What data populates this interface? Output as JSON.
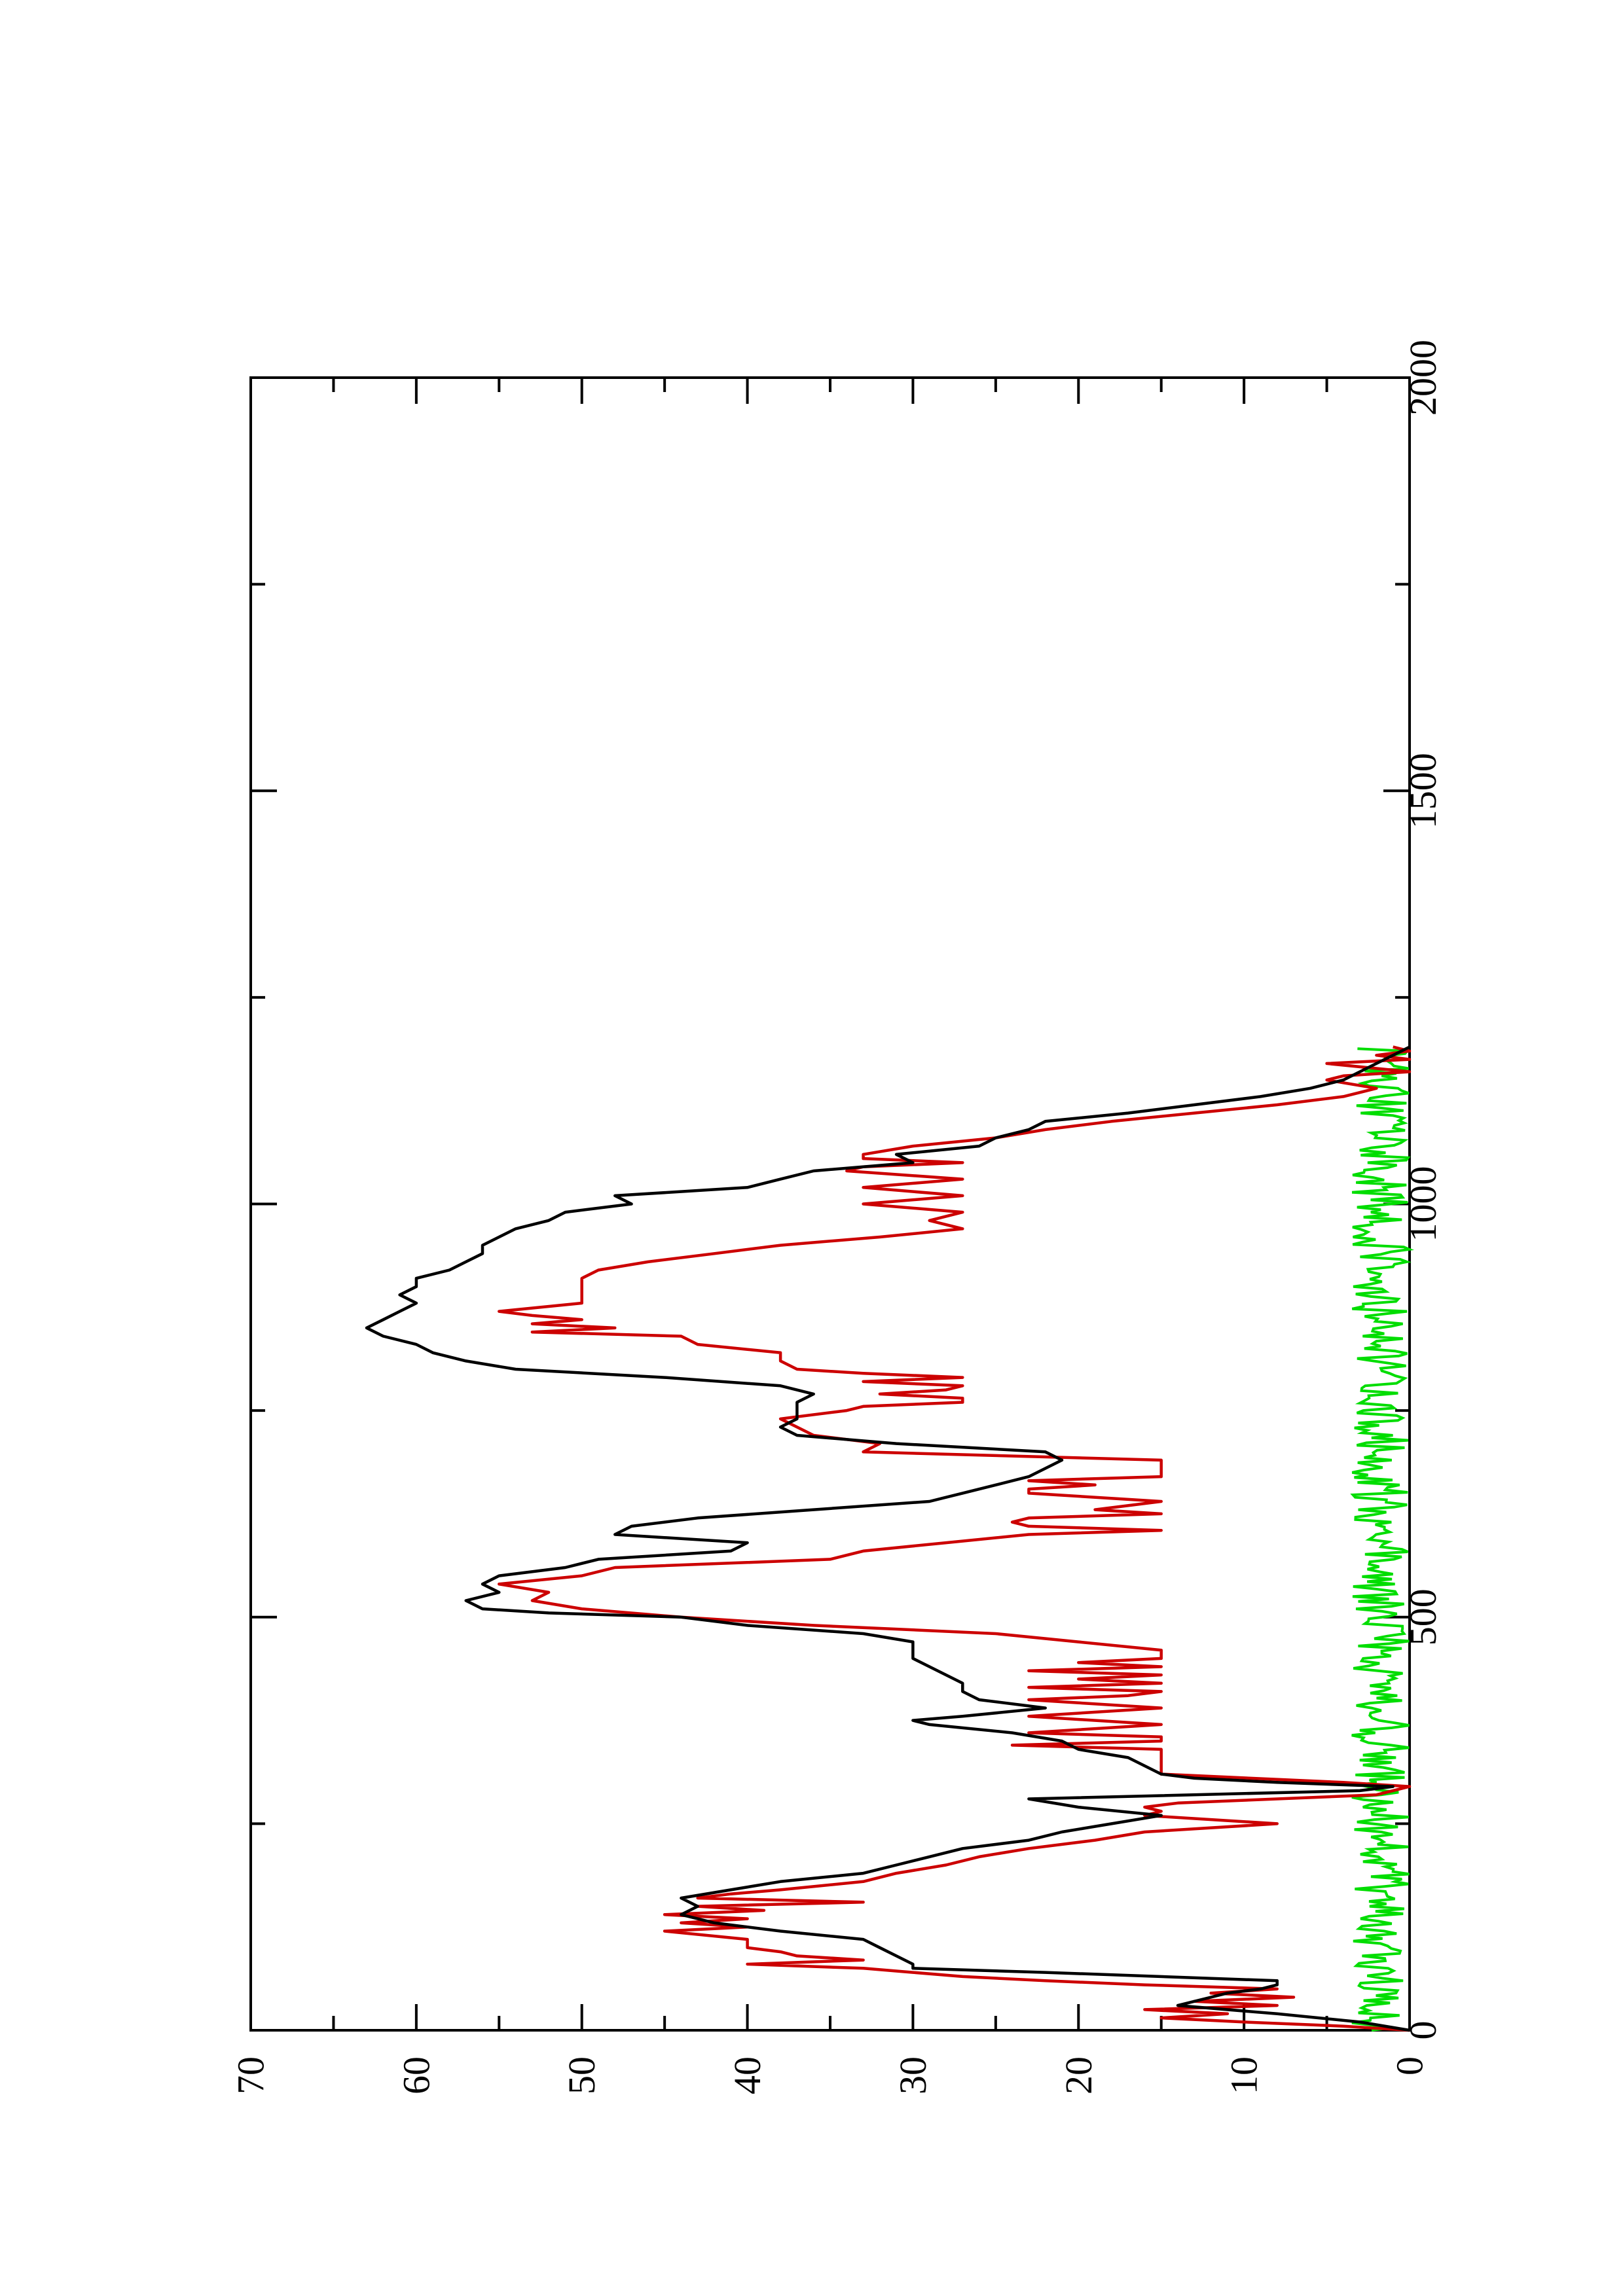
{
  "chart_data": {
    "type": "line",
    "title": "",
    "xlabel": "",
    "ylabel": "",
    "rotation": "page rotated 90 degrees counter-clockwise",
    "xlim": [
      0,
      2000
    ],
    "ylim": [
      0,
      70
    ],
    "x_ticks": [
      0,
      500,
      1000,
      1500,
      2000
    ],
    "x_tick_labels": [
      "0",
      "500",
      "1000",
      "1500",
      "2000"
    ],
    "y_ticks": [
      0,
      10,
      20,
      30,
      40,
      50,
      60,
      70
    ],
    "y_tick_labels": [
      "0",
      "10",
      "20",
      "30",
      "40",
      "50",
      "60",
      "70"
    ],
    "grid": false,
    "legend": "none",
    "series": [
      {
        "color": "#000000",
        "x": [
          0,
          10,
          20,
          30,
          40,
          45,
          50,
          55,
          60,
          70,
          75,
          80,
          90,
          100,
          110,
          120,
          125,
          130,
          135,
          140,
          150,
          160,
          170,
          180,
          190,
          200,
          210,
          220,
          230,
          240,
          250,
          260,
          270,
          280,
          290,
          295,
          300,
          305,
          310,
          320,
          330,
          340,
          350,
          360,
          370,
          375,
          380,
          390,
          400,
          410,
          420,
          430,
          440,
          450,
          460,
          470,
          480,
          490,
          500,
          505,
          510,
          520,
          530,
          540,
          550,
          560,
          570,
          580,
          590,
          600,
          610,
          620,
          630,
          640,
          650,
          660,
          670,
          680,
          690,
          700,
          710,
          720,
          730,
          740,
          750,
          760,
          770,
          780,
          790,
          800,
          810,
          820,
          830,
          840,
          850,
          860,
          870,
          880,
          890,
          900,
          910,
          920,
          930,
          940,
          950,
          960,
          970,
          980,
          990,
          1000,
          1010,
          1020,
          1030,
          1040,
          1050,
          1060,
          1070,
          1080,
          1090,
          1100,
          1110,
          1120,
          1130,
          1140,
          1150,
          1160,
          1170,
          1180,
          1190
        ],
        "y": [
          0,
          3,
          8,
          14,
          12,
          11,
          9,
          8,
          8,
          22,
          30,
          30,
          31,
          32,
          33,
          38,
          40,
          42,
          43,
          44,
          43,
          44,
          41,
          38,
          33,
          31,
          29,
          27,
          23,
          21,
          18,
          15,
          20,
          23,
          3,
          1,
          8,
          13,
          15,
          16,
          17,
          20,
          21,
          24,
          29,
          30,
          27,
          22,
          26,
          27,
          27,
          28,
          29,
          30,
          30,
          30,
          33,
          40,
          44,
          52,
          56,
          57,
          55,
          56,
          55,
          51,
          49,
          41,
          40,
          48,
          47,
          43,
          36,
          29,
          27,
          25,
          23,
          22,
          21,
          22,
          31,
          37,
          38,
          37,
          37,
          37,
          36,
          38,
          45,
          54,
          57,
          59,
          60,
          62,
          63,
          62,
          61,
          60,
          61,
          60,
          60,
          58,
          57,
          56,
          56,
          55,
          54,
          52,
          51,
          47,
          48,
          40,
          38,
          36,
          30,
          31,
          26,
          25,
          23,
          22,
          17,
          13,
          9,
          6,
          4,
          3,
          2,
          1,
          0
        ]
      },
      {
        "color": "#cc0000",
        "x": [
          0,
          5,
          10,
          15,
          20,
          25,
          30,
          35,
          40,
          45,
          50,
          55,
          60,
          65,
          70,
          75,
          80,
          85,
          90,
          95,
          100,
          110,
          120,
          125,
          130,
          135,
          140,
          145,
          150,
          155,
          160,
          165,
          170,
          180,
          190,
          200,
          210,
          220,
          230,
          240,
          250,
          260,
          265,
          270,
          275,
          280,
          285,
          290,
          295,
          300,
          310,
          320,
          330,
          340,
          345,
          350,
          355,
          360,
          370,
          380,
          390,
          400,
          405,
          410,
          415,
          420,
          425,
          430,
          435,
          440,
          445,
          450,
          455,
          460,
          470,
          480,
          490,
          500,
          510,
          520,
          530,
          540,
          550,
          560,
          570,
          580,
          590,
          600,
          605,
          610,
          615,
          620,
          625,
          630,
          640,
          650,
          655,
          660,
          665,
          670,
          675,
          680,
          690,
          700,
          710,
          720,
          730,
          740,
          750,
          755,
          760,
          765,
          770,
          775,
          780,
          785,
          790,
          795,
          800,
          810,
          820,
          830,
          840,
          845,
          850,
          855,
          860,
          865,
          870,
          880,
          890,
          900,
          910,
          920,
          930,
          940,
          950,
          960,
          970,
          980,
          990,
          1000,
          1010,
          1020,
          1030,
          1040,
          1045,
          1050,
          1055,
          1060,
          1070,
          1080,
          1090,
          1100,
          1110,
          1120,
          1130,
          1140,
          1150,
          1155,
          1160,
          1170,
          1175,
          1180,
          1185,
          1190
        ],
        "y": [
          0,
          4,
          10,
          15,
          11,
          16,
          8,
          13,
          7,
          12,
          8,
          16,
          22,
          27,
          30,
          33,
          40,
          33,
          37,
          38,
          40,
          40,
          45,
          40,
          44,
          40,
          45,
          39,
          43,
          33,
          43,
          41,
          38,
          33,
          31,
          28,
          26,
          23,
          19,
          16,
          8,
          16,
          15,
          16,
          14,
          8,
          2,
          1,
          0,
          4,
          15,
          15,
          15,
          15,
          24,
          15,
          15,
          23,
          15,
          23,
          15,
          23,
          17,
          15,
          23,
          15,
          20,
          15,
          23,
          15,
          20,
          15,
          15,
          15,
          20,
          25,
          36,
          44,
          50,
          53,
          52,
          55,
          50,
          48,
          35,
          33,
          28,
          23,
          15,
          23,
          24,
          23,
          15,
          19,
          15,
          23,
          23,
          19,
          23,
          15,
          15,
          15,
          15,
          33,
          32,
          36,
          37,
          38,
          34,
          33,
          27,
          27,
          32,
          28,
          27,
          33,
          27,
          33,
          37,
          38,
          38,
          43,
          44,
          53,
          48,
          53,
          50,
          53,
          55,
          50,
          50,
          50,
          50,
          49,
          46,
          42,
          38,
          32,
          27,
          29,
          27,
          33,
          27,
          33,
          27,
          34,
          33,
          27,
          33,
          33,
          30,
          25,
          22,
          18,
          13,
          8,
          4,
          2,
          5,
          4,
          0,
          5,
          0,
          2,
          0,
          1
        ]
      },
      {
        "color": "#00dd00",
        "description": "noisy series fluctuating between 0 and about 3.5 for x from 0 to 1190",
        "x_range": [
          0,
          1190
        ],
        "y_range": [
          0,
          3.5
        ]
      }
    ]
  }
}
